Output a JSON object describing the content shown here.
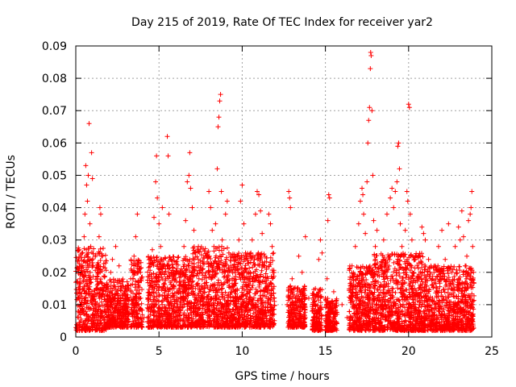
{
  "chart_data": {
    "type": "scatter",
    "title": "Day 215 of 2019, Rate Of TEC Index for receiver yar2",
    "xlabel": "GPS time / hours",
    "ylabel": "ROTI / TECUs",
    "xlim": [
      0,
      25
    ],
    "ylim": [
      0,
      0.09
    ],
    "xticks": [
      0,
      5,
      10,
      15,
      20,
      25
    ],
    "xtick_labels": [
      "0",
      "5",
      "10",
      "15",
      "20",
      "25"
    ],
    "yticks": [
      0,
      0.01,
      0.02,
      0.03,
      0.04,
      0.05,
      0.06,
      0.07,
      0.08,
      0.09
    ],
    "ytick_labels": [
      "0",
      "0.01",
      "0.02",
      "0.03",
      "0.04",
      "0.05",
      "0.06",
      "0.07",
      "0.08",
      "0.09"
    ],
    "grid": true,
    "marker": "+",
    "color": "#ff0000",
    "series": [
      {
        "name": "ROTI",
        "points": [
          [
            0.1,
            0.002
          ],
          [
            0.15,
            0.012
          ],
          [
            0.2,
            0.027
          ],
          [
            0.3,
            0.02
          ],
          [
            0.35,
            0.008
          ],
          [
            0.45,
            0.015
          ],
          [
            0.5,
            0.031
          ],
          [
            0.55,
            0.038
          ],
          [
            0.6,
            0.053
          ],
          [
            0.65,
            0.047
          ],
          [
            0.7,
            0.042
          ],
          [
            0.75,
            0.05
          ],
          [
            0.8,
            0.066
          ],
          [
            0.85,
            0.035
          ],
          [
            0.9,
            0.028
          ],
          [
            0.95,
            0.057
          ],
          [
            1.0,
            0.049
          ],
          [
            1.05,
            0.022
          ],
          [
            1.1,
            0.013
          ],
          [
            1.2,
            0.009
          ],
          [
            1.3,
            0.018
          ],
          [
            1.4,
            0.031
          ],
          [
            1.45,
            0.04
          ],
          [
            1.5,
            0.038
          ],
          [
            1.55,
            0.025
          ],
          [
            1.6,
            0.015
          ],
          [
            1.7,
            0.006
          ],
          [
            1.9,
            0.01
          ],
          [
            2.0,
            0.014
          ],
          [
            2.1,
            0.02
          ],
          [
            2.2,
            0.024
          ],
          [
            2.3,
            0.016
          ],
          [
            2.4,
            0.028
          ],
          [
            2.5,
            0.011
          ],
          [
            2.6,
            0.022
          ],
          [
            2.7,
            0.009
          ],
          [
            2.9,
            0.007
          ],
          [
            3.1,
            0.012
          ],
          [
            3.3,
            0.018
          ],
          [
            3.5,
            0.025
          ],
          [
            3.6,
            0.031
          ],
          [
            3.7,
            0.038
          ],
          [
            3.8,
            0.021
          ],
          [
            3.9,
            0.012
          ],
          [
            4.1,
            0.006
          ],
          [
            4.3,
            0.009
          ],
          [
            4.5,
            0.016
          ],
          [
            4.6,
            0.027
          ],
          [
            4.7,
            0.037
          ],
          [
            4.8,
            0.048
          ],
          [
            4.85,
            0.056
          ],
          [
            4.9,
            0.043
          ],
          [
            5.0,
            0.035
          ],
          [
            5.1,
            0.028
          ],
          [
            5.2,
            0.04
          ],
          [
            5.3,
            0.022
          ],
          [
            5.4,
            0.018
          ],
          [
            5.5,
            0.062
          ],
          [
            5.55,
            0.056
          ],
          [
            5.6,
            0.038
          ],
          [
            5.7,
            0.024
          ],
          [
            5.9,
            0.015
          ],
          [
            6.1,
            0.011
          ],
          [
            6.3,
            0.02
          ],
          [
            6.5,
            0.028
          ],
          [
            6.6,
            0.036
          ],
          [
            6.7,
            0.048
          ],
          [
            6.8,
            0.05
          ],
          [
            6.85,
            0.057
          ],
          [
            6.9,
            0.046
          ],
          [
            7.0,
            0.04
          ],
          [
            7.1,
            0.033
          ],
          [
            7.2,
            0.026
          ],
          [
            7.4,
            0.018
          ],
          [
            7.6,
            0.012
          ],
          [
            7.8,
            0.025
          ],
          [
            8.0,
            0.045
          ],
          [
            8.1,
            0.04
          ],
          [
            8.2,
            0.033
          ],
          [
            8.3,
            0.028
          ],
          [
            8.4,
            0.035
          ],
          [
            8.5,
            0.052
          ],
          [
            8.55,
            0.065
          ],
          [
            8.6,
            0.068
          ],
          [
            8.65,
            0.073
          ],
          [
            8.7,
            0.075
          ],
          [
            8.75,
            0.045
          ],
          [
            8.8,
            0.03
          ],
          [
            8.9,
            0.022
          ],
          [
            9.0,
            0.038
          ],
          [
            9.1,
            0.042
          ],
          [
            9.2,
            0.026
          ],
          [
            9.4,
            0.018
          ],
          [
            9.6,
            0.012
          ],
          [
            9.8,
            0.03
          ],
          [
            9.9,
            0.042
          ],
          [
            10.0,
            0.047
          ],
          [
            10.1,
            0.035
          ],
          [
            10.2,
            0.026
          ],
          [
            10.4,
            0.018
          ],
          [
            10.6,
            0.03
          ],
          [
            10.8,
            0.038
          ],
          [
            10.9,
            0.045
          ],
          [
            11.0,
            0.044
          ],
          [
            11.1,
            0.039
          ],
          [
            11.2,
            0.032
          ],
          [
            11.3,
            0.022
          ],
          [
            11.5,
            0.015
          ],
          [
            11.6,
            0.038
          ],
          [
            11.7,
            0.035
          ],
          [
            11.8,
            0.028
          ],
          [
            11.9,
            0.012
          ],
          [
            12.7,
            0.01
          ],
          [
            12.8,
            0.045
          ],
          [
            12.85,
            0.043
          ],
          [
            12.9,
            0.04
          ],
          [
            13.0,
            0.018
          ],
          [
            13.2,
            0.012
          ],
          [
            13.4,
            0.025
          ],
          [
            13.6,
            0.02
          ],
          [
            13.8,
            0.031
          ],
          [
            14.0,
            0.012
          ],
          [
            14.2,
            0.008
          ],
          [
            14.4,
            0.015
          ],
          [
            14.6,
            0.024
          ],
          [
            14.7,
            0.03
          ],
          [
            14.8,
            0.026
          ],
          [
            15.0,
            0.012
          ],
          [
            15.1,
            0.018
          ],
          [
            15.15,
            0.036
          ],
          [
            15.2,
            0.044
          ],
          [
            15.25,
            0.043
          ],
          [
            15.3,
            0.009
          ],
          [
            15.5,
            0.014
          ],
          [
            15.7,
            0.007
          ],
          [
            16.0,
            0.01
          ],
          [
            16.3,
            0.006
          ],
          [
            16.5,
            0.012
          ],
          [
            16.6,
            0.022
          ],
          [
            16.8,
            0.028
          ],
          [
            17.0,
            0.035
          ],
          [
            17.1,
            0.042
          ],
          [
            17.2,
            0.046
          ],
          [
            17.25,
            0.044
          ],
          [
            17.3,
            0.038
          ],
          [
            17.4,
            0.032
          ],
          [
            17.5,
            0.048
          ],
          [
            17.55,
            0.06
          ],
          [
            17.6,
            0.067
          ],
          [
            17.65,
            0.071
          ],
          [
            17.7,
            0.083
          ],
          [
            17.72,
            0.088
          ],
          [
            17.75,
            0.087
          ],
          [
            17.8,
            0.07
          ],
          [
            17.85,
            0.05
          ],
          [
            17.9,
            0.036
          ],
          [
            18.0,
            0.028
          ],
          [
            18.1,
            0.033
          ],
          [
            18.3,
            0.022
          ],
          [
            18.5,
            0.03
          ],
          [
            18.7,
            0.038
          ],
          [
            18.9,
            0.043
          ],
          [
            19.0,
            0.046
          ],
          [
            19.1,
            0.04
          ],
          [
            19.2,
            0.045
          ],
          [
            19.3,
            0.048
          ],
          [
            19.35,
            0.059
          ],
          [
            19.4,
            0.06
          ],
          [
            19.45,
            0.052
          ],
          [
            19.5,
            0.035
          ],
          [
            19.6,
            0.028
          ],
          [
            19.8,
            0.033
          ],
          [
            19.9,
            0.045
          ],
          [
            19.95,
            0.042
          ],
          [
            20.0,
            0.072
          ],
          [
            20.05,
            0.071
          ],
          [
            20.1,
            0.038
          ],
          [
            20.2,
            0.03
          ],
          [
            20.4,
            0.024
          ],
          [
            20.6,
            0.018
          ],
          [
            20.8,
            0.034
          ],
          [
            20.9,
            0.032
          ],
          [
            21.0,
            0.03
          ],
          [
            21.2,
            0.024
          ],
          [
            21.4,
            0.016
          ],
          [
            21.6,
            0.022
          ],
          [
            21.8,
            0.028
          ],
          [
            22.0,
            0.033
          ],
          [
            22.2,
            0.024
          ],
          [
            22.4,
            0.035
          ],
          [
            22.6,
            0.02
          ],
          [
            22.8,
            0.028
          ],
          [
            23.0,
            0.034
          ],
          [
            23.1,
            0.03
          ],
          [
            23.2,
            0.039
          ],
          [
            23.3,
            0.031
          ],
          [
            23.4,
            0.022
          ],
          [
            23.5,
            0.025
          ],
          [
            23.6,
            0.036
          ],
          [
            23.7,
            0.038
          ],
          [
            23.75,
            0.04
          ],
          [
            23.8,
            0.045
          ],
          [
            23.85,
            0.028
          ],
          [
            23.9,
            0.02
          ]
        ]
      }
    ],
    "background_bands": [
      {
        "start": 0.0,
        "end": 1.85,
        "low": 0.002,
        "high": 0.028
      },
      {
        "start": 1.85,
        "end": 3.2,
        "low": 0.003,
        "high": 0.018
      },
      {
        "start": 3.3,
        "end": 4.0,
        "low": 0.003,
        "high": 0.024
      },
      {
        "start": 4.3,
        "end": 7.0,
        "low": 0.003,
        "high": 0.025
      },
      {
        "start": 7.0,
        "end": 9.2,
        "low": 0.003,
        "high": 0.028
      },
      {
        "start": 9.2,
        "end": 11.95,
        "low": 0.003,
        "high": 0.026
      },
      {
        "start": 12.75,
        "end": 13.8,
        "low": 0.003,
        "high": 0.016
      },
      {
        "start": 14.2,
        "end": 14.8,
        "low": 0.002,
        "high": 0.015
      },
      {
        "start": 15.0,
        "end": 15.7,
        "low": 0.002,
        "high": 0.012
      },
      {
        "start": 16.4,
        "end": 17.9,
        "low": 0.002,
        "high": 0.022
      },
      {
        "start": 17.9,
        "end": 21.0,
        "low": 0.002,
        "high": 0.026
      },
      {
        "start": 21.0,
        "end": 23.95,
        "low": 0.002,
        "high": 0.022
      }
    ]
  }
}
